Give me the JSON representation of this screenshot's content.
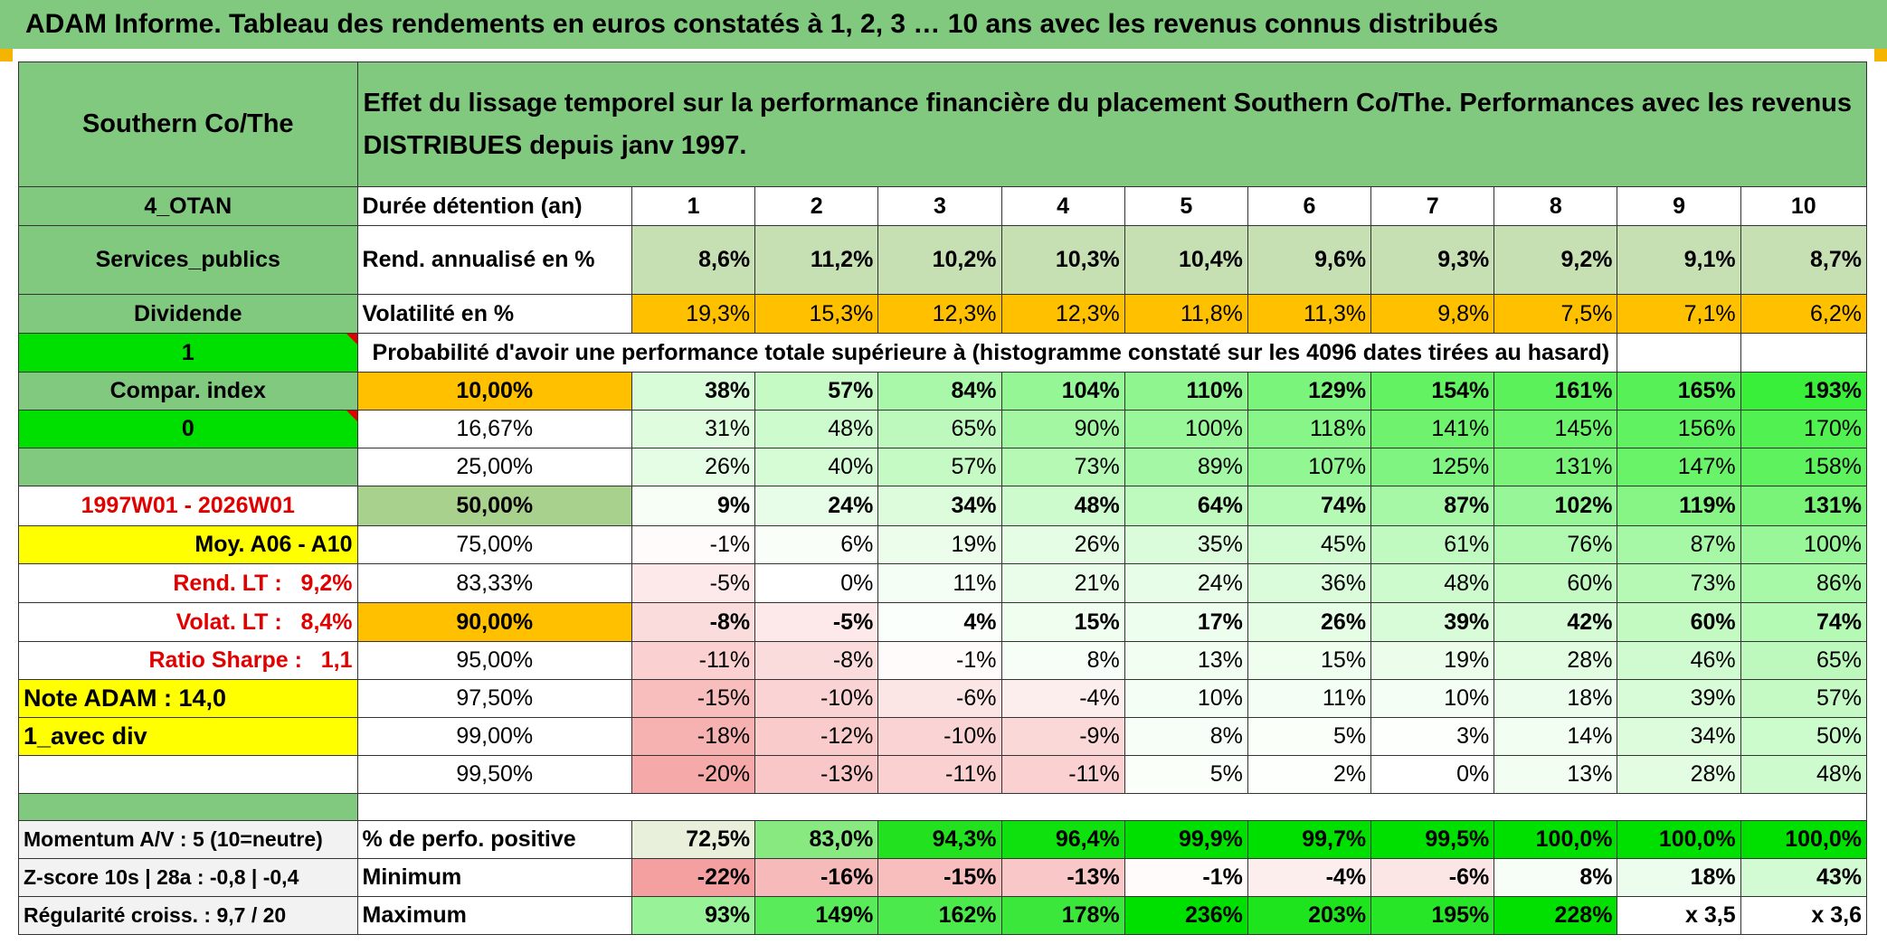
{
  "title": "ADAM Informe. Tableau des rendements en euros constatés à 1, 2, 3 … 10 ans avec les revenus connus distribués",
  "header": {
    "name": "Southern Co/The",
    "description": "Effet du lissage temporel sur la performance financière du placement Southern Co/The. Performances avec les revenus DISTRIBUES depuis janv 1997."
  },
  "side": {
    "zone": "4_OTAN",
    "sector": "Services_publics",
    "mode": "Dividende",
    "flag1": "1",
    "compar_label": "Compar. index",
    "flag0": "0",
    "period": "1997W01 - 2026W01",
    "avg": "Moy. A06 - A10",
    "rend_lt_label": "Rend. LT :",
    "rend_lt_value": "9,2%",
    "volat_lt_label": "Volat. LT :",
    "volat_lt_value": "8,4%",
    "sharpe_label": "Ratio Sharpe :",
    "sharpe_value": "1,1",
    "note": "Note ADAM : 14,0",
    "variant": "1_avec div",
    "momentum": "Momentum A/V : 5 (10=neutre)",
    "zscore": "Z-score 10s | 28a : -0,8 | -0,4",
    "regularity": "Régularité croiss. : 9,7 / 20"
  },
  "table": {
    "years_label": "Durée détention (an)",
    "years": [
      "1",
      "2",
      "3",
      "4",
      "5",
      "6",
      "7",
      "8",
      "9",
      "10"
    ],
    "rend_label": "Rend. annualisé en %",
    "rend": [
      "8,6%",
      "11,2%",
      "10,2%",
      "10,3%",
      "10,4%",
      "9,6%",
      "9,3%",
      "9,2%",
      "9,1%",
      "8,7%"
    ],
    "vol_label": "Volatilité en %",
    "vol": [
      "19,3%",
      "15,3%",
      "12,3%",
      "12,3%",
      "11,8%",
      "11,3%",
      "9,8%",
      "7,5%",
      "7,1%",
      "6,2%"
    ],
    "prob_title": "Probabilité d'avoir une performance totale supérieure à (histogramme constaté sur les 4096 dates tirées au hasard)",
    "rows": [
      {
        "p": "10,00%",
        "v": [
          "38%",
          "57%",
          "84%",
          "104%",
          "110%",
          "129%",
          "154%",
          "161%",
          "165%",
          "193%"
        ]
      },
      {
        "p": "16,67%",
        "v": [
          "31%",
          "48%",
          "65%",
          "90%",
          "100%",
          "118%",
          "141%",
          "145%",
          "156%",
          "170%"
        ]
      },
      {
        "p": "25,00%",
        "v": [
          "26%",
          "40%",
          "57%",
          "73%",
          "89%",
          "107%",
          "125%",
          "131%",
          "147%",
          "158%"
        ]
      },
      {
        "p": "50,00%",
        "v": [
          "9%",
          "24%",
          "34%",
          "48%",
          "64%",
          "74%",
          "87%",
          "102%",
          "119%",
          "131%"
        ]
      },
      {
        "p": "75,00%",
        "v": [
          "-1%",
          "6%",
          "19%",
          "26%",
          "35%",
          "45%",
          "61%",
          "76%",
          "87%",
          "100%"
        ]
      },
      {
        "p": "83,33%",
        "v": [
          "-5%",
          "0%",
          "11%",
          "21%",
          "24%",
          "36%",
          "48%",
          "60%",
          "73%",
          "86%"
        ]
      },
      {
        "p": "90,00%",
        "v": [
          "-8%",
          "-5%",
          "4%",
          "15%",
          "17%",
          "26%",
          "39%",
          "42%",
          "60%",
          "74%"
        ]
      },
      {
        "p": "95,00%",
        "v": [
          "-11%",
          "-8%",
          "-1%",
          "8%",
          "13%",
          "15%",
          "19%",
          "28%",
          "46%",
          "65%"
        ]
      },
      {
        "p": "97,50%",
        "v": [
          "-15%",
          "-10%",
          "-6%",
          "-4%",
          "10%",
          "11%",
          "10%",
          "18%",
          "39%",
          "57%"
        ]
      },
      {
        "p": "99,00%",
        "v": [
          "-18%",
          "-12%",
          "-10%",
          "-9%",
          "8%",
          "5%",
          "3%",
          "14%",
          "34%",
          "50%"
        ]
      },
      {
        "p": "99,50%",
        "v": [
          "-20%",
          "-13%",
          "-11%",
          "-11%",
          "5%",
          "2%",
          "0%",
          "13%",
          "28%",
          "48%"
        ]
      }
    ],
    "pos_label": "% de perfo. positive",
    "pos": [
      "72,5%",
      "83,0%",
      "94,3%",
      "96,4%",
      "99,9%",
      "99,7%",
      "99,5%",
      "100,0%",
      "100,0%",
      "100,0%"
    ],
    "min_label": "Minimum",
    "min": [
      "-22%",
      "-16%",
      "-15%",
      "-13%",
      "-1%",
      "-4%",
      "-6%",
      "8%",
      "18%",
      "43%"
    ],
    "max_label": "Maximum",
    "max": [
      "93%",
      "149%",
      "162%",
      "178%",
      "236%",
      "203%",
      "195%",
      "228%",
      "x 3,5",
      "x 3,6"
    ]
  },
  "colors": {
    "header_green": "#80c97f",
    "lime": "#00e000",
    "yellow": "#ffff00",
    "orange": "#ffc000",
    "red_text": "#e00000"
  }
}
